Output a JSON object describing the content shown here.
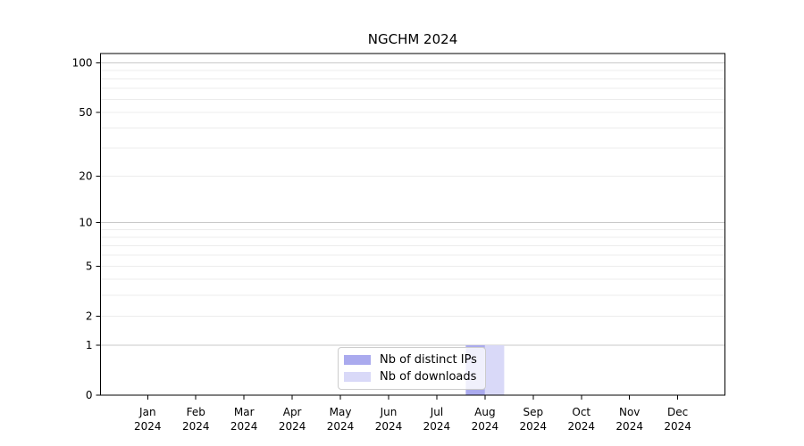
{
  "chart_data": {
    "type": "bar",
    "title": "NGCHM 2024",
    "x_axis": {
      "categories": [
        [
          "Jan",
          "2024"
        ],
        [
          "Feb",
          "2024"
        ],
        [
          "Mar",
          "2024"
        ],
        [
          "Apr",
          "2024"
        ],
        [
          "May",
          "2024"
        ],
        [
          "Jun",
          "2024"
        ],
        [
          "Jul",
          "2024"
        ],
        [
          "Aug",
          "2024"
        ],
        [
          "Sep",
          "2024"
        ],
        [
          "Oct",
          "2024"
        ],
        [
          "Nov",
          "2024"
        ],
        [
          "Dec",
          "2024"
        ]
      ]
    },
    "y_axis": {
      "scale": "log1p",
      "ticks": [
        0,
        1,
        2,
        5,
        10,
        20,
        50,
        100
      ],
      "major_gridlines": [
        1,
        10,
        100
      ],
      "minor_gridlines": [
        2,
        3,
        4,
        5,
        6,
        7,
        8,
        9,
        20,
        30,
        40,
        50,
        60,
        70,
        80,
        90
      ],
      "ylim": [
        0,
        114
      ]
    },
    "series": [
      {
        "name": "Nb of distinct IPs",
        "color": "#aaaaee",
        "values": [
          0,
          0,
          0,
          0,
          0,
          0,
          0,
          1,
          0,
          0,
          0,
          0
        ]
      },
      {
        "name": "Nb of downloads",
        "color": "#d9d9f8",
        "values": [
          0,
          0,
          0,
          0,
          0,
          0,
          0,
          1,
          0,
          0,
          0,
          0
        ]
      }
    ],
    "legend": {
      "position": "bottom-center"
    }
  },
  "colors": {
    "background": "#ffffff",
    "axis": "#000000",
    "tick_label": "#000000",
    "major_grid": "#c9c9c9",
    "minor_grid": "#ececec"
  }
}
